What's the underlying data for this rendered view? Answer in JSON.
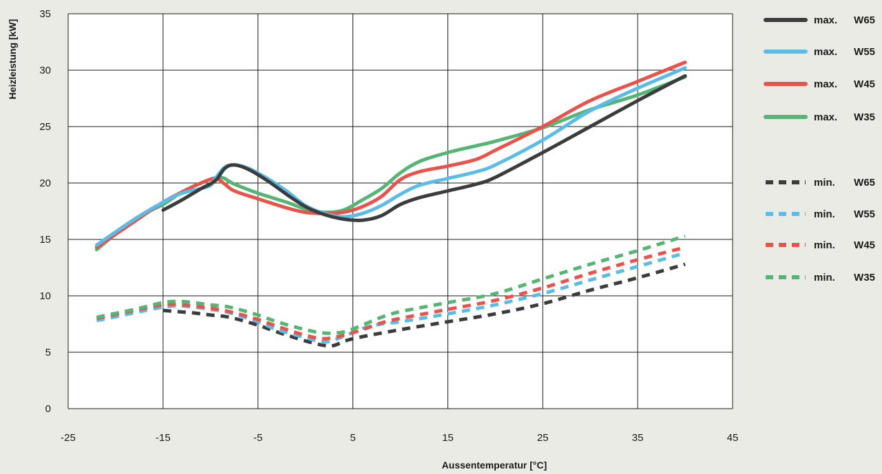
{
  "chart_data": {
    "type": "line",
    "title": "",
    "xlabel": "Aussentemperatur [°C]",
    "ylabel": "Heizleistung [kW]",
    "xlim": [
      -25,
      45
    ],
    "ylim": [
      0,
      35
    ],
    "xticks": [
      -25,
      -15,
      -5,
      5,
      15,
      25,
      35,
      45
    ],
    "yticks": [
      0,
      5,
      10,
      15,
      20,
      25,
      30,
      35
    ],
    "grid": true,
    "legend_position": "right",
    "series": [
      {
        "name": "max. W65",
        "color": "#3c3c3c",
        "dash": false,
        "x": [
          -15,
          -13,
          -11,
          -9.5,
          -8.5,
          -7.5,
          -6,
          -4,
          -2,
          0,
          2,
          4,
          6,
          8,
          10,
          12,
          15,
          18,
          20,
          25,
          30,
          35,
          40
        ],
        "y": [
          17.6,
          18.5,
          19.5,
          20.2,
          21.3,
          21.6,
          21.2,
          20.2,
          19.0,
          17.9,
          17.2,
          16.8,
          16.7,
          17.1,
          18.1,
          18.7,
          19.3,
          19.9,
          20.5,
          22.7,
          25.0,
          27.3,
          29.5
        ]
      },
      {
        "name": "max. W55",
        "color": "#5bbce8",
        "dash": false,
        "x": [
          -22,
          -18,
          -15,
          -13,
          -11,
          -10,
          -9.5,
          -8.5,
          -7.5,
          -6,
          -4,
          -2,
          0,
          2,
          4,
          6,
          8,
          10,
          12,
          15,
          18,
          20,
          25,
          30,
          35,
          40
        ],
        "y": [
          14.5,
          16.8,
          18.3,
          19.1,
          19.5,
          19.8,
          20.4,
          21.4,
          21.6,
          21.3,
          20.4,
          19.3,
          18.0,
          17.3,
          17.0,
          17.3,
          18.0,
          19.0,
          19.8,
          20.4,
          21.0,
          21.6,
          23.8,
          26.4,
          28.4,
          30.2
        ]
      },
      {
        "name": "max. W45",
        "color": "#e8544c",
        "dash": false,
        "x": [
          -22,
          -18,
          -15,
          -13,
          -11,
          -9.5,
          -8.5,
          -7.5,
          -5,
          -2,
          0,
          2,
          4,
          6,
          8,
          10,
          12,
          15,
          18,
          20,
          25,
          30,
          35,
          40
        ],
        "y": [
          14.3,
          16.6,
          18.3,
          19.2,
          20.0,
          20.4,
          19.9,
          19.3,
          18.6,
          17.8,
          17.4,
          17.3,
          17.4,
          17.9,
          18.8,
          20.3,
          21.0,
          21.5,
          22.1,
          22.9,
          25.0,
          27.3,
          29.0,
          30.7
        ]
      },
      {
        "name": "max. W35",
        "color": "#55b575",
        "dash": false,
        "x": [
          -22,
          -18,
          -15,
          -13,
          -11,
          -9,
          -7.5,
          -5,
          -2,
          0,
          2,
          4,
          6,
          8,
          10,
          12,
          15,
          18,
          20,
          25,
          30,
          35,
          40
        ],
        "y": [
          14.1,
          16.8,
          18.1,
          19.2,
          20.0,
          20.5,
          19.9,
          19.1,
          18.3,
          17.7,
          17.4,
          17.6,
          18.5,
          19.5,
          20.9,
          21.9,
          22.7,
          23.3,
          23.7,
          24.9,
          26.5,
          27.8,
          29.4
        ]
      },
      {
        "name": "min. W65",
        "color": "#3c3c3c",
        "dash": true,
        "x": [
          -15,
          -12,
          -10,
          -8,
          -5,
          -3,
          0,
          2,
          3,
          5,
          10,
          15,
          20,
          25,
          30,
          35,
          40
        ],
        "y": [
          8.7,
          8.5,
          8.3,
          8.1,
          7.4,
          6.8,
          6.0,
          5.6,
          5.6,
          6.2,
          7.0,
          7.7,
          8.4,
          9.3,
          10.5,
          11.6,
          12.8
        ]
      },
      {
        "name": "min. W55",
        "color": "#5bbce8",
        "dash": true,
        "x": [
          -22,
          -18,
          -15,
          -13,
          -10,
          -8,
          -5,
          -3,
          0,
          2,
          4,
          6,
          8,
          10,
          15,
          20,
          25,
          30,
          35,
          40
        ],
        "y": [
          7.8,
          8.5,
          9.0,
          9.1,
          8.8,
          8.5,
          7.7,
          7.0,
          6.3,
          5.9,
          6.4,
          7.1,
          7.5,
          7.7,
          8.4,
          9.2,
          10.2,
          11.4,
          12.6,
          13.8
        ]
      },
      {
        "name": "min. W45",
        "color": "#e8544c",
        "dash": true,
        "x": [
          -22,
          -18,
          -15,
          -13,
          -10,
          -8,
          -5,
          -3,
          0,
          2,
          4,
          6,
          8,
          10,
          15,
          20,
          25,
          30,
          35,
          40
        ],
        "y": [
          8.0,
          8.7,
          9.2,
          9.2,
          8.9,
          8.6,
          7.9,
          7.3,
          6.5,
          6.2,
          6.5,
          7.0,
          7.6,
          8.0,
          8.8,
          9.6,
          10.7,
          12.0,
          13.2,
          14.3
        ]
      },
      {
        "name": "min. W35",
        "color": "#55b575",
        "dash": true,
        "x": [
          -22,
          -18,
          -15,
          -13,
          -10,
          -8,
          -5,
          -3,
          0,
          2,
          4,
          6,
          8,
          10,
          15,
          20,
          25,
          30,
          35,
          40
        ],
        "y": [
          8.1,
          8.8,
          9.4,
          9.5,
          9.2,
          9.0,
          8.3,
          7.7,
          7.0,
          6.7,
          6.8,
          7.4,
          8.1,
          8.6,
          9.4,
          10.2,
          11.5,
          12.8,
          14.0,
          15.3
        ]
      }
    ]
  }
}
